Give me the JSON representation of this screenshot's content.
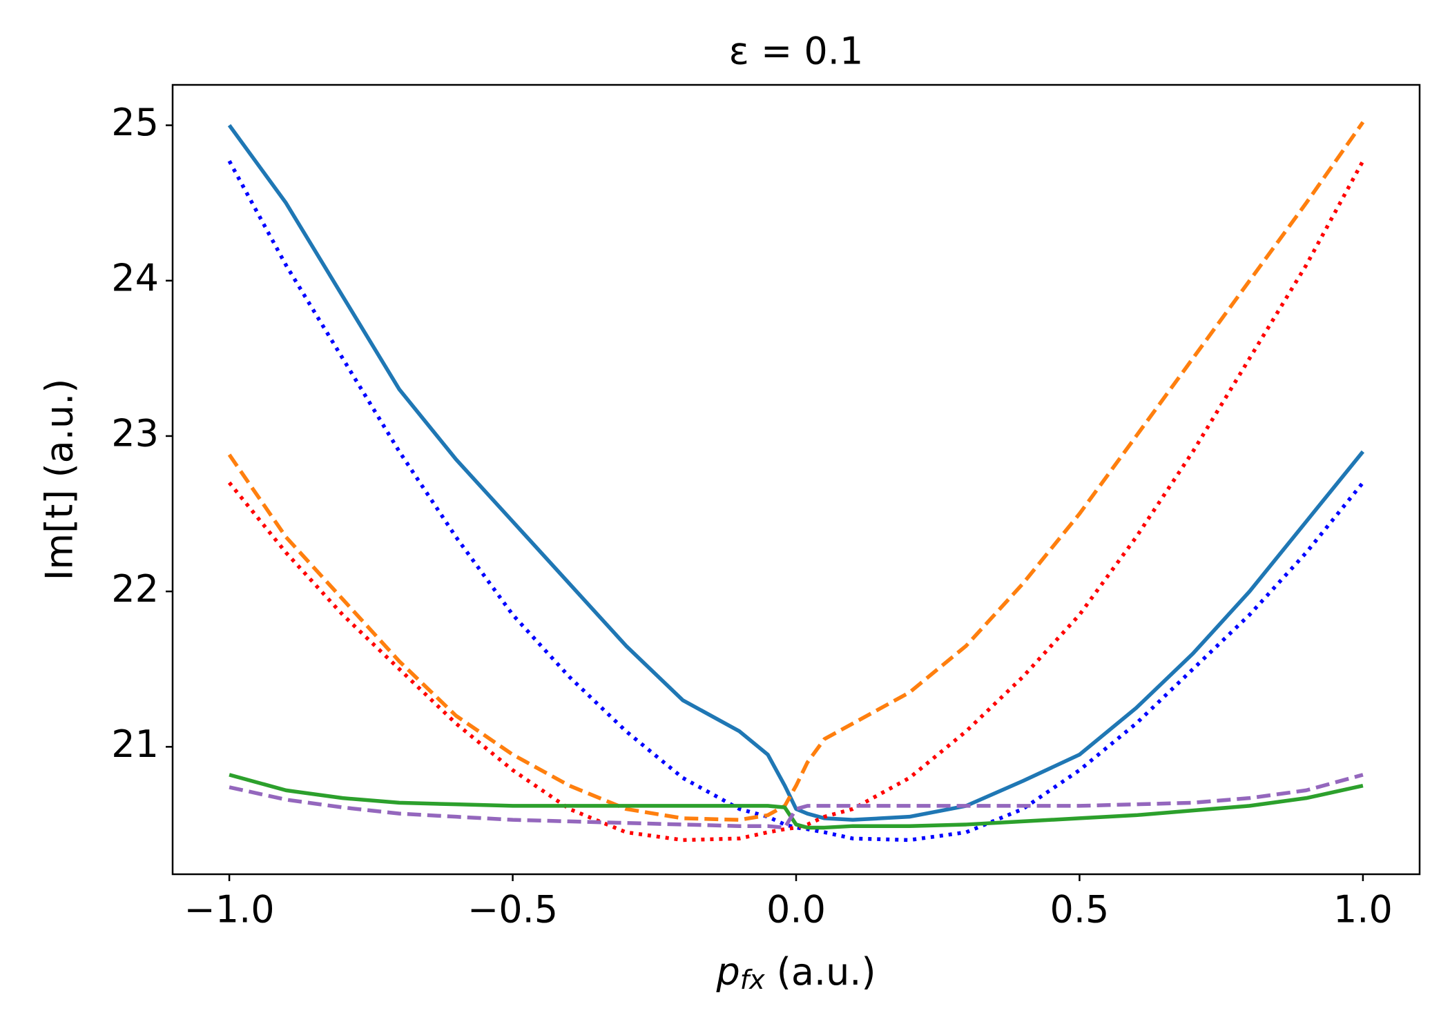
{
  "chart_data": {
    "type": "line",
    "title": "ε = 0.1",
    "xlabel": [
      "p",
      "fx",
      " (a.u.)"
    ],
    "ylabel": "Im[t] (a.u.)",
    "x": [
      -1,
      -0.9,
      -0.8,
      -0.7,
      -0.6,
      -0.5,
      -0.4,
      -0.3,
      -0.2,
      -0.1,
      -0.05,
      -0.02,
      0,
      0.02,
      0.05,
      0.1,
      0.2,
      0.3,
      0.4,
      0.5,
      0.6,
      0.7,
      0.8,
      0.9,
      1
    ],
    "series": [
      {
        "color": "#1f77b4",
        "dash": "solid",
        "values": [
          25.0,
          24.5,
          23.9,
          23.3,
          22.85,
          22.45,
          22.05,
          21.65,
          21.3,
          21.1,
          20.95,
          20.75,
          20.6,
          20.57,
          20.54,
          20.53,
          20.55,
          20.62,
          20.78,
          20.95,
          21.25,
          21.6,
          22.0,
          22.45,
          22.9
        ]
      },
      {
        "color": "#0000ff",
        "dash": "dotted",
        "values": [
          24.77,
          24.1,
          23.5,
          22.9,
          22.35,
          21.85,
          21.45,
          21.1,
          20.8,
          20.6,
          20.55,
          20.5,
          20.48,
          20.47,
          20.45,
          20.41,
          20.4,
          20.45,
          20.6,
          20.85,
          21.15,
          21.5,
          21.85,
          22.25,
          22.7
        ]
      },
      {
        "color": "#ff7f0e",
        "dash": "dashed",
        "values": [
          22.88,
          22.35,
          21.95,
          21.55,
          21.2,
          20.95,
          20.75,
          20.6,
          20.54,
          20.53,
          20.56,
          20.62,
          20.75,
          20.9,
          21.05,
          21.15,
          21.35,
          21.65,
          22.05,
          22.5,
          23.0,
          23.5,
          24.0,
          24.5,
          25.02
        ]
      },
      {
        "color": "#ff0000",
        "dash": "dotted",
        "values": [
          22.7,
          22.25,
          21.85,
          21.5,
          21.15,
          20.85,
          20.6,
          20.45,
          20.4,
          20.41,
          20.45,
          20.47,
          20.48,
          20.5,
          20.55,
          20.6,
          20.8,
          21.1,
          21.45,
          21.85,
          22.35,
          22.9,
          23.5,
          24.1,
          24.77
        ]
      },
      {
        "color": "#2ca02c",
        "dash": "solid",
        "values": [
          20.82,
          20.72,
          20.67,
          20.64,
          20.63,
          20.62,
          20.62,
          20.62,
          20.62,
          20.62,
          20.62,
          20.61,
          20.5,
          20.48,
          20.48,
          20.49,
          20.49,
          20.5,
          20.52,
          20.54,
          20.56,
          20.59,
          20.62,
          20.67,
          20.75
        ]
      },
      {
        "color": "#9467bd",
        "dash": "dashed",
        "values": [
          20.74,
          20.66,
          20.61,
          20.57,
          20.55,
          20.53,
          20.52,
          20.51,
          20.5,
          20.49,
          20.49,
          20.48,
          20.6,
          20.62,
          20.62,
          20.62,
          20.62,
          20.62,
          20.62,
          20.62,
          20.63,
          20.64,
          20.67,
          20.72,
          20.82
        ]
      }
    ],
    "xlim": [
      -1.1,
      1.1
    ],
    "ylim": [
      20.18,
      25.26
    ],
    "xticks": [
      {
        "value": -1,
        "label": "−1.0"
      },
      0.5,
      {
        "value": -0.5,
        "label": "−0.5"
      },
      {
        "value": 0,
        "label": "0.0"
      },
      {
        "value": 1,
        "label": "1.0"
      }
    ],
    "yticks": [
      21,
      22,
      23,
      24,
      25
    ],
    "grid": false
  }
}
